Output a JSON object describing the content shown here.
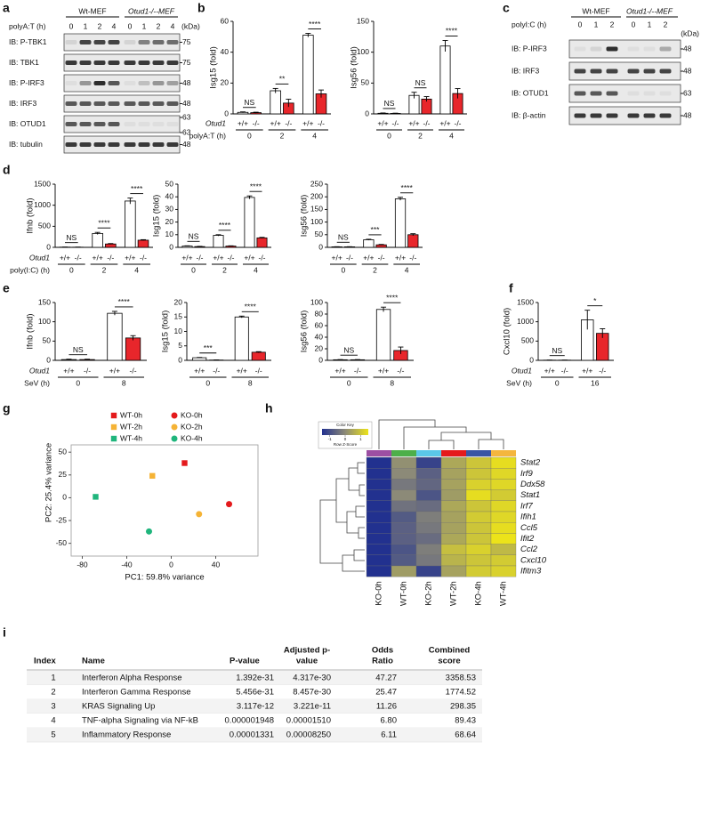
{
  "panel_labels": [
    "a",
    "b",
    "c",
    "d",
    "e",
    "f",
    "g",
    "h",
    "i"
  ],
  "blots": [
    {
      "treatment": "polyA:T (h)",
      "groups": [
        "Wt-MEF",
        "Otud1-/--MEF"
      ],
      "lanes": [
        "0",
        "1",
        "2",
        "4",
        "0",
        "1",
        "2",
        "4"
      ],
      "unit": "(kDa)",
      "rows": [
        {
          "label": "IB: P-TBK1",
          "markers": [
            75
          ]
        },
        {
          "label": "IB: TBK1",
          "markers": [
            75
          ]
        },
        {
          "label": "IB: P-IRF3",
          "markers": [
            48
          ]
        },
        {
          "label": "IB: IRF3",
          "markers": [
            48
          ]
        },
        {
          "label": "IB: OTUD1",
          "markers": [
            63,
            63
          ]
        },
        {
          "label": "IB: tubulin",
          "markers": [
            48
          ]
        }
      ]
    },
    {
      "treatment": "polyI:C (h)",
      "groups": [
        "Wt-MEF",
        "Otud1-/--MEF"
      ],
      "lanes": [
        "0",
        "1",
        "2",
        "0",
        "1",
        "2"
      ],
      "unit": "(kDa)",
      "rows": [
        {
          "label": "IB: P-IRF3",
          "markers": [
            48
          ]
        },
        {
          "label": "IB: IRF3",
          "markers": [
            48
          ]
        },
        {
          "label": "IB: OTUD1",
          "markers": [
            63
          ]
        },
        {
          "label": "IB: β-actin",
          "markers": [
            48
          ]
        }
      ]
    }
  ],
  "chart_data": [
    {
      "type": "bar",
      "ylabel": "Isg15 (fold)",
      "row_labels": [
        "Otud1",
        "polyA:T (h)"
      ],
      "groups": [
        "0",
        "2",
        "4"
      ],
      "categories": [
        "+/+",
        "-/-",
        "+/+",
        "-/-",
        "+/+",
        "-/-"
      ],
      "values": [
        1,
        0.8,
        15,
        7,
        51,
        13
      ],
      "errors": [
        0.3,
        0.3,
        1.5,
        2.5,
        1.2,
        2.5
      ],
      "colors": [
        "#ffffff",
        "#e8262b",
        "#ffffff",
        "#e8262b",
        "#ffffff",
        "#e8262b"
      ],
      "significance": [
        "NS",
        "**",
        "****"
      ],
      "ylim": [
        0,
        60
      ],
      "yticks": [
        0,
        20,
        40,
        60
      ]
    },
    {
      "type": "bar",
      "ylabel": "Isg56 (fold)",
      "groups": [
        "0",
        "2",
        "4"
      ],
      "categories": [
        "+/+",
        "-/-",
        "+/+",
        "-/-",
        "+/+",
        "-/-"
      ],
      "values": [
        1,
        0.8,
        30,
        24,
        110,
        33
      ],
      "errors": [
        0.5,
        0.4,
        5,
        4,
        9,
        8
      ],
      "colors": [
        "#ffffff",
        "#e8262b",
        "#ffffff",
        "#e8262b",
        "#ffffff",
        "#e8262b"
      ],
      "significance": [
        "NS",
        "NS",
        "****"
      ],
      "ylim": [
        0,
        150
      ],
      "yticks": [
        0,
        50,
        100,
        150
      ]
    },
    {
      "type": "bar",
      "ylabel": "Ifnb (fold)",
      "row_labels": [
        "Otud1",
        "poly(I:C) (h)"
      ],
      "groups": [
        "0",
        "2",
        "4"
      ],
      "categories": [
        "+/+",
        "-/-",
        "+/+",
        "-/-",
        "+/+",
        "-/-"
      ],
      "values": [
        5,
        4,
        330,
        80,
        1100,
        170
      ],
      "errors": [
        2,
        2,
        25,
        10,
        70,
        12
      ],
      "colors": [
        "#ffffff",
        "#e8262b",
        "#ffffff",
        "#e8262b",
        "#ffffff",
        "#e8262b"
      ],
      "significance": [
        "NS",
        "****",
        "****"
      ],
      "ylim": [
        0,
        1500
      ],
      "yticks": [
        0,
        500,
        1000,
        1500
      ]
    },
    {
      "type": "bar",
      "ylabel": "Isg15 (fold)",
      "groups": [
        "0",
        "2",
        "4"
      ],
      "categories": [
        "+/+",
        "-/-",
        "+/+",
        "-/-",
        "+/+",
        "-/-"
      ],
      "values": [
        1,
        0.6,
        9.5,
        1,
        39.5,
        7.5
      ],
      "errors": [
        0.2,
        0.2,
        0.5,
        0.2,
        1.2,
        0.4
      ],
      "colors": [
        "#ffffff",
        "#e8262b",
        "#ffffff",
        "#e8262b",
        "#ffffff",
        "#e8262b"
      ],
      "significance": [
        "NS",
        "****",
        "****"
      ],
      "ylim": [
        0,
        50
      ],
      "yticks": [
        0,
        10,
        20,
        30,
        40,
        50
      ]
    },
    {
      "type": "bar",
      "ylabel": "Isg56 (fold)",
      "groups": [
        "0",
        "2",
        "4"
      ],
      "categories": [
        "+/+",
        "-/-",
        "+/+",
        "-/-",
        "+/+",
        "-/-"
      ],
      "values": [
        2,
        2,
        30,
        10,
        192,
        50
      ],
      "errors": [
        0.5,
        0.5,
        2,
        1.5,
        6,
        4
      ],
      "colors": [
        "#ffffff",
        "#e8262b",
        "#ffffff",
        "#e8262b",
        "#ffffff",
        "#e8262b"
      ],
      "significance": [
        "NS",
        "***",
        "****"
      ],
      "ylim": [
        0,
        250
      ],
      "yticks": [
        0,
        50,
        100,
        150,
        200,
        250
      ]
    },
    {
      "type": "bar",
      "ylabel": "Ifnb (fold)",
      "row_labels": [
        "Otud1",
        "SeV (h)"
      ],
      "groups": [
        "0",
        "8"
      ],
      "categories": [
        "+/+",
        "-/-",
        "+/+",
        "-/-"
      ],
      "values": [
        2,
        2,
        122,
        58
      ],
      "errors": [
        1,
        1,
        5,
        6
      ],
      "colors": [
        "#ffffff",
        "#e8262b",
        "#ffffff",
        "#e8262b"
      ],
      "significance": [
        "NS",
        "****"
      ],
      "ylim": [
        0,
        150
      ],
      "yticks": [
        0,
        50,
        100,
        150
      ]
    },
    {
      "type": "bar",
      "ylabel": "Isg15 (fold)",
      "groups": [
        "0",
        "8"
      ],
      "categories": [
        "+/+",
        "-/-",
        "+/+",
        "-/-"
      ],
      "values": [
        0.9,
        0.1,
        15,
        2.8
      ],
      "errors": [
        0.1,
        0.05,
        0.3,
        0.2
      ],
      "colors": [
        "#ffffff",
        "#e8262b",
        "#ffffff",
        "#e8262b"
      ],
      "significance": [
        "***",
        "****"
      ],
      "ylim": [
        0,
        20
      ],
      "yticks": [
        0,
        5,
        10,
        15,
        20
      ]
    },
    {
      "type": "bar",
      "ylabel": "Isg56 (fold)",
      "groups": [
        "0",
        "8"
      ],
      "categories": [
        "+/+",
        "-/-",
        "+/+",
        "-/-"
      ],
      "values": [
        1,
        1,
        88,
        17
      ],
      "errors": [
        0.3,
        0.3,
        4,
        6
      ],
      "colors": [
        "#ffffff",
        "#e8262b",
        "#ffffff",
        "#e8262b"
      ],
      "significance": [
        "NS",
        "****"
      ],
      "ylim": [
        0,
        100
      ],
      "yticks": [
        0,
        20,
        40,
        60,
        80,
        100
      ]
    },
    {
      "type": "bar",
      "ylabel": "Cxcl10 (fold)",
      "row_labels": [
        "Otud1",
        "SeV (h)"
      ],
      "groups": [
        "0",
        "16"
      ],
      "categories": [
        "+/+",
        "-/-",
        "+/+",
        "-/-"
      ],
      "values": [
        5,
        5,
        1050,
        700
      ],
      "errors": [
        2,
        2,
        250,
        120
      ],
      "colors": [
        "#ffffff",
        "#e8262b",
        "#ffffff",
        "#e8262b"
      ],
      "significance": [
        "NS",
        "*"
      ],
      "ylim": [
        0,
        1500
      ],
      "yticks": [
        0,
        500,
        1000,
        1500
      ]
    },
    {
      "type": "scatter",
      "xlabel": "PC1: 59.8% variance",
      "ylabel": "PC2: 25.4% variance",
      "xlim": [
        -90,
        78
      ],
      "ylim": [
        -64,
        58
      ],
      "xticks": [
        -80,
        -40,
        0,
        40
      ],
      "yticks": [
        -50,
        -25,
        0,
        25,
        50
      ],
      "series": [
        {
          "name": "WT-0h",
          "color": "#e41a1c",
          "marker": "square",
          "x": [
            12
          ],
          "y": [
            38
          ]
        },
        {
          "name": "KO-0h",
          "color": "#e41a1c",
          "marker": "circle",
          "x": [
            52
          ],
          "y": [
            -7
          ]
        },
        {
          "name": "WT-2h",
          "color": "#f5b335",
          "marker": "square",
          "x": [
            -17
          ],
          "y": [
            24
          ]
        },
        {
          "name": "KO-2h",
          "color": "#f5b335",
          "marker": "circle",
          "x": [
            25
          ],
          "y": [
            -18
          ]
        },
        {
          "name": "WT-4h",
          "color": "#1fb57c",
          "marker": "square",
          "x": [
            -68
          ],
          "y": [
            1
          ]
        },
        {
          "name": "KO-4h",
          "color": "#1fb57c",
          "marker": "circle",
          "x": [
            -20
          ],
          "y": [
            -37
          ]
        }
      ]
    }
  ],
  "heatmap": {
    "key_title": "Color Key",
    "key_subtitle": "Row Z-Score",
    "key_range": [
      -1.5,
      1.5
    ],
    "key_ticks": [
      -1,
      0,
      1
    ],
    "palette": [
      "#22318f",
      "#8c8a78",
      "#ece31a"
    ],
    "columns": [
      "KO-0h",
      "WT-0h",
      "KO-2h",
      "WT-2h",
      "KO-4h",
      "WT-4h"
    ],
    "column_colors": [
      "#9c4fa3",
      "#4daf4a",
      "#5bc8e8",
      "#e41a1c",
      "#3a55a4",
      "#f4b63e"
    ],
    "rows": [
      "Stat2",
      "Irf9",
      "Ddx58",
      "Stat1",
      "Irf7",
      "Ifih1",
      "Ccl5",
      "Ifit2",
      "Ccl2",
      "Cxcl10",
      "Ifitm3"
    ],
    "values": [
      [
        -1.9,
        0.1,
        -1.2,
        0.5,
        1.0,
        1.4
      ],
      [
        -1.9,
        0.0,
        -0.7,
        0.4,
        1.0,
        1.3
      ],
      [
        -1.9,
        -0.3,
        -0.6,
        0.4,
        1.2,
        1.3
      ],
      [
        -1.9,
        0.0,
        -0.9,
        0.3,
        1.4,
        1.1
      ],
      [
        -1.9,
        -0.4,
        -0.5,
        0.5,
        1.0,
        1.3
      ],
      [
        -1.9,
        -0.8,
        -0.2,
        0.4,
        1.1,
        1.3
      ],
      [
        -1.8,
        -0.7,
        -0.3,
        0.4,
        1.0,
        1.4
      ],
      [
        -1.8,
        -0.7,
        -0.5,
        0.5,
        1.0,
        1.5
      ],
      [
        -1.7,
        -0.9,
        -0.2,
        0.9,
        1.2,
        0.8
      ],
      [
        -1.7,
        -0.8,
        -0.3,
        0.7,
        1.0,
        1.1
      ],
      [
        -1.8,
        0.3,
        -1.2,
        0.4,
        1.1,
        1.2
      ]
    ]
  },
  "table": {
    "columns": [
      [
        "Index"
      ],
      [
        "Name"
      ],
      [
        "P-value"
      ],
      [
        "Adjusted p-",
        "value"
      ],
      [
        "Odds",
        "Ratio"
      ],
      [
        "Combined",
        "score"
      ]
    ],
    "rows": [
      [
        "1",
        "Interferon Alpha Response",
        "1.392e-31",
        "4.317e-30",
        "47.27",
        "3358.53"
      ],
      [
        "2",
        "Interferon Gamma Response",
        "5.456e-31",
        "8.457e-30",
        "25.47",
        "1774.52"
      ],
      [
        "3",
        "KRAS Signaling Up",
        "3.117e-12",
        "3.221e-11",
        "11.26",
        "298.35"
      ],
      [
        "4",
        "TNF-alpha Signaling via NF-kB",
        "0.000001948",
        "0.00001510",
        "6.80",
        "89.43"
      ],
      [
        "5",
        "Inflammatory Response",
        "0.00001331",
        "0.00008250",
        "6.11",
        "68.64"
      ]
    ]
  }
}
